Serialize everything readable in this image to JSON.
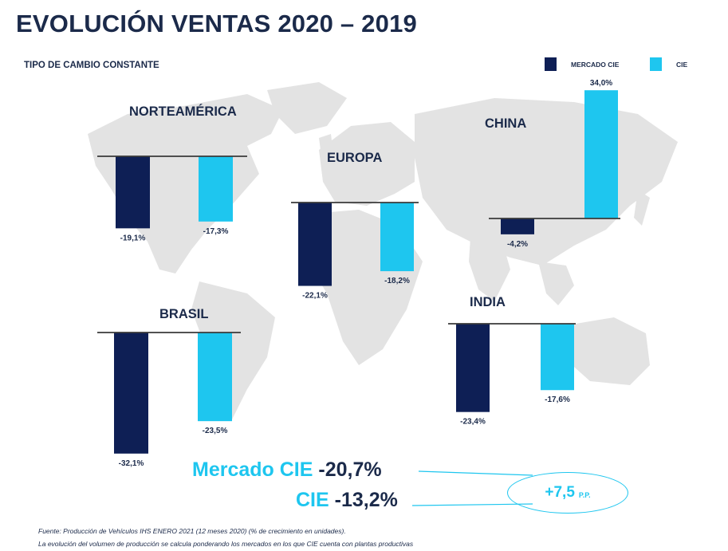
{
  "title": "EVOLUCIÓN VENTAS 2020 – 2019",
  "subtitle": "TIPO DE CAMBIO CONSTANTE",
  "legend": [
    {
      "label": "MERCADO CIE",
      "color": "#0e1f55"
    },
    {
      "label": "CIE",
      "color": "#1ec6ef"
    }
  ],
  "chart_data": [
    {
      "type": "bar",
      "title": "NORTEAMÉRICA",
      "categories": [
        "MERCADO CIE",
        "CIE"
      ],
      "values": [
        -19.1,
        -17.3
      ],
      "labels": [
        "-19,1%",
        "-17,3%"
      ]
    },
    {
      "type": "bar",
      "title": "EUROPA",
      "categories": [
        "MERCADO CIE",
        "CIE"
      ],
      "values": [
        -22.1,
        -18.2
      ],
      "labels": [
        "-22,1%",
        "-18,2%"
      ]
    },
    {
      "type": "bar",
      "title": "CHINA",
      "categories": [
        "MERCADO CIE",
        "CIE"
      ],
      "values": [
        -4.2,
        34.0
      ],
      "labels": [
        "-4,2%",
        "34,0%"
      ]
    },
    {
      "type": "bar",
      "title": "BRASIL",
      "categories": [
        "MERCADO CIE",
        "CIE"
      ],
      "values": [
        -32.1,
        -23.5
      ],
      "labels": [
        "-32,1%",
        "-23,5%"
      ]
    },
    {
      "type": "bar",
      "title": "INDIA",
      "categories": [
        "MERCADO CIE",
        "CIE"
      ],
      "values": [
        -23.4,
        -17.6
      ],
      "labels": [
        "-23,4%",
        "-17,6%"
      ]
    }
  ],
  "summary": {
    "market_label": "Mercado CIE",
    "market_value": "-20,7%",
    "cie_label": "CIE",
    "cie_value": "-13,2%",
    "difference_value": "+7,5",
    "difference_unit": "P.P."
  },
  "footnotes": {
    "source": "Fuente: Producción de Vehículos IHS ENERO 2021 (12 meses 2020) (% de crecimiento en unidades).",
    "note": "La evolución del volumen de producción se calcula ponderando los mercados en los que CIE cuenta con plantas productivas"
  },
  "colors": {
    "dark": "#0e1f55",
    "light": "#1ec6ef",
    "map": "#e3e3e3",
    "axis": "#3a3a3a"
  }
}
